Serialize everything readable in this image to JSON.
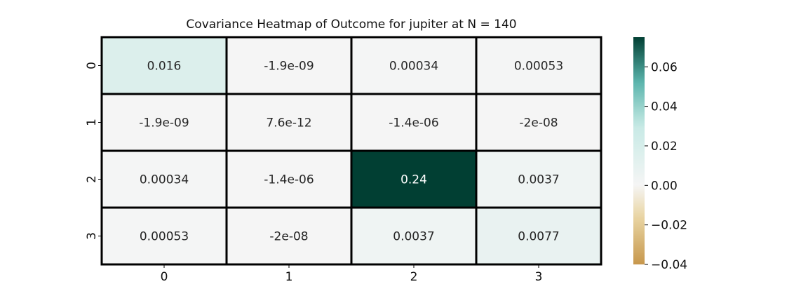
{
  "chart_data": {
    "type": "heatmap",
    "title": "Covariance Heatmap of Outcome for jupiter at N = 140",
    "xlabel": "",
    "ylabel": "",
    "x_categories": [
      "0",
      "1",
      "2",
      "3"
    ],
    "y_categories": [
      "0",
      "1",
      "2",
      "3"
    ],
    "values": [
      [
        0.016,
        -1.9e-09,
        0.00034,
        0.00053
      ],
      [
        -1.9e-09,
        7.6e-12,
        -1.4e-06,
        -2e-08
      ],
      [
        0.00034,
        -1.4e-06,
        0.24,
        0.0037
      ],
      [
        0.00053,
        -2e-08,
        0.0037,
        0.0077
      ]
    ],
    "cell_labels": [
      [
        "0.016",
        "-1.9e-09",
        "0.00034",
        "0.00053"
      ],
      [
        "-1.9e-09",
        "7.6e-12",
        "-1.4e-06",
        "-2e-08"
      ],
      [
        "0.00034",
        "-1.4e-06",
        "0.24",
        "0.0037"
      ],
      [
        "0.00053",
        "-2e-08",
        "0.0037",
        "0.0077"
      ]
    ],
    "colorbar": {
      "vmin": -0.04,
      "vmax": 0.075,
      "center": 0,
      "ticks": [
        -0.04,
        -0.02,
        0.0,
        0.02,
        0.04,
        0.06
      ],
      "tick_labels": [
        "−0.04",
        "−0.02",
        "0.00",
        "0.02",
        "0.04",
        "0.06"
      ],
      "position": "right"
    },
    "colormap": {
      "name": "BrBG",
      "low": "#c7974c",
      "mid": "#f5f5f5",
      "high": "#013f33"
    },
    "grid": false
  }
}
